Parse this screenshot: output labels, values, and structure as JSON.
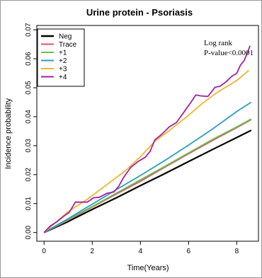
{
  "chart_data": {
    "type": "line",
    "title": "Urine protein - Psoriasis",
    "xlabel": "Time(Years)",
    "ylabel": "Incidence probability",
    "xlim": [
      -0.3,
      8.9
    ],
    "ylim": [
      -0.003,
      0.0715
    ],
    "xticks": [
      0,
      2,
      4,
      6,
      8
    ],
    "yticks": [
      0.0,
      0.01,
      0.02,
      0.03,
      0.04,
      0.05,
      0.06,
      0.07
    ],
    "ytick_labels": [
      "0.00",
      "0.01",
      "0.02",
      "0.03",
      "0.04",
      "0.05",
      "0.06",
      "0.07"
    ],
    "grid": false,
    "legend_position": "top-left",
    "annotation": [
      "Log rank",
      "P-value<0.0001"
    ],
    "series": [
      {
        "name": "Neg",
        "color": "#000000",
        "x": [
          0,
          1,
          2,
          3,
          4,
          5,
          6,
          7,
          8,
          8.6
        ],
        "y": [
          0,
          0.0038,
          0.008,
          0.012,
          0.0162,
          0.0203,
          0.0245,
          0.0287,
          0.0328,
          0.0353
        ]
      },
      {
        "name": "Trace",
        "color": "#d9536b",
        "x": [
          0,
          1,
          2,
          3,
          4,
          5,
          6,
          7,
          8,
          8.6
        ],
        "y": [
          0,
          0.0042,
          0.0088,
          0.0133,
          0.0177,
          0.0225,
          0.0272,
          0.0318,
          0.0362,
          0.039
        ]
      },
      {
        "name": "+1",
        "color": "#6cc04a",
        "x": [
          0,
          1,
          2,
          3,
          4,
          5,
          6,
          7,
          8,
          8.6
        ],
        "y": [
          0,
          0.0045,
          0.009,
          0.0136,
          0.0182,
          0.0228,
          0.0275,
          0.0322,
          0.0365,
          0.0392
        ]
      },
      {
        "name": "+2",
        "color": "#2b9bc4",
        "x": [
          0,
          1,
          2,
          3,
          4,
          5,
          6,
          7,
          8,
          8.6
        ],
        "y": [
          0,
          0.0048,
          0.0098,
          0.0148,
          0.0197,
          0.0248,
          0.0302,
          0.0358,
          0.0418,
          0.045
        ]
      },
      {
        "name": "+3",
        "color": "#f0b62a",
        "x": [
          0,
          1,
          1.8,
          2.6,
          3.4,
          4,
          4.6,
          5.2,
          6,
          6.6,
          7.2,
          8,
          8.5
        ],
        "y": [
          0,
          0.0072,
          0.0115,
          0.0165,
          0.0215,
          0.0262,
          0.0315,
          0.0352,
          0.0405,
          0.0448,
          0.0485,
          0.0525,
          0.056
        ]
      },
      {
        "name": "+4",
        "color": "#a51fa8",
        "x": [
          0,
          0.25,
          0.5,
          0.8,
          1.05,
          1.3,
          1.8,
          2.05,
          2.3,
          2.6,
          2.9,
          3.1,
          3.3,
          3.6,
          3.9,
          4.2,
          4.4,
          4.6,
          4.9,
          5.2,
          5.5,
          5.8,
          6.1,
          6.3,
          6.5,
          6.8,
          7.1,
          7.3,
          7.55,
          7.8,
          8.0,
          8.15,
          8.3,
          8.45,
          8.55
        ],
        "y": [
          0,
          0.0022,
          0.0035,
          0.0055,
          0.007,
          0.0105,
          0.0105,
          0.012,
          0.0122,
          0.0135,
          0.014,
          0.016,
          0.019,
          0.0225,
          0.0245,
          0.026,
          0.028,
          0.032,
          0.034,
          0.0365,
          0.038,
          0.0415,
          0.045,
          0.0475,
          0.0472,
          0.047,
          0.0502,
          0.0505,
          0.052,
          0.054,
          0.055,
          0.0578,
          0.0593,
          0.0622,
          0.0645
        ]
      }
    ]
  }
}
